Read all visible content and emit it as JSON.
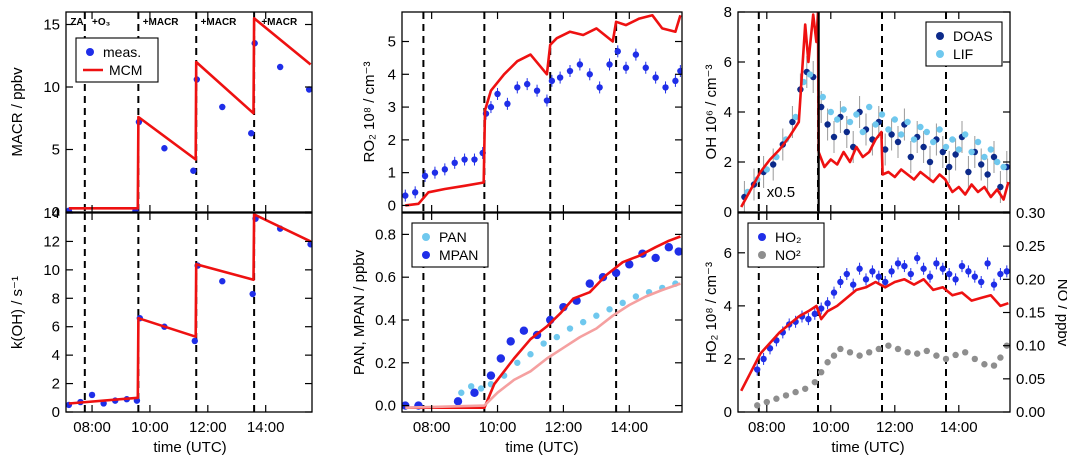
{
  "colors": {
    "meas": "#1f2ee8",
    "model": "#ee1111",
    "model_light": "#f5a0a0",
    "light_blue": "#6fc8ee",
    "dark_blue": "#0c2a8a",
    "gray": "#8e8e8e"
  },
  "x_axis": {
    "ticks": [
      8,
      10,
      12,
      14
    ],
    "tick_labels": [
      "08:00",
      "10:00",
      "12:00",
      "14:00"
    ],
    "label": "time (UTC)",
    "range": [
      7.1,
      15.6
    ],
    "events": [
      7.75,
      9.6,
      11.6,
      13.6
    ]
  },
  "chart_data": [
    {
      "id": "macr",
      "type": "scatter",
      "ylabel": "MACR  / ppbv",
      "ylim": [
        0,
        16
      ],
      "yticks": [
        0,
        5,
        10,
        15
      ],
      "legend": [
        "meas.",
        "MCM"
      ],
      "legend_position": "top-left",
      "annotations": [
        "ZA",
        "+O₃",
        "+MACR",
        "+MACR",
        "+MACR"
      ],
      "series": [
        {
          "name": "meas.",
          "style": "dots",
          "color": "meas",
          "x": [
            7.2,
            9.5,
            9.62,
            10.5,
            11.5,
            11.62,
            12.5,
            13.5,
            13.62,
            14.5,
            15.5
          ],
          "y": [
            0.1,
            0.1,
            7.2,
            5.1,
            3.3,
            10.6,
            8.4,
            6.3,
            13.5,
            11.6,
            9.8
          ]
        },
        {
          "name": "MCM",
          "style": "line",
          "color": "model",
          "x": [
            7.2,
            9.58,
            9.6,
            11.58,
            11.6,
            13.58,
            13.6,
            15.55
          ],
          "y": [
            0.3,
            0.3,
            7.6,
            4.2,
            12.0,
            7.9,
            15.5,
            11.8
          ]
        }
      ]
    },
    {
      "id": "koh",
      "type": "scatter",
      "ylabel": "k(OH)  / s⁻¹",
      "ylim": [
        0,
        14
      ],
      "yticks": [
        0,
        2,
        4,
        6,
        8,
        10,
        12,
        14
      ],
      "series": [
        {
          "name": "",
          "style": "dots",
          "color": "meas",
          "x": [
            7.2,
            7.6,
            8.0,
            8.4,
            8.8,
            9.2,
            9.55,
            9.65,
            10.5,
            11.55,
            11.65,
            12.5,
            13.55,
            13.65,
            14.5,
            15.55
          ],
          "y": [
            0.5,
            0.7,
            1.2,
            0.6,
            0.8,
            0.9,
            0.8,
            6.6,
            6.0,
            5.0,
            10.3,
            9.2,
            8.3,
            13.6,
            12.9,
            11.8
          ]
        },
        {
          "name": "",
          "style": "line",
          "color": "model",
          "x": [
            7.2,
            9.58,
            9.6,
            11.58,
            11.6,
            13.58,
            13.6,
            15.55
          ],
          "y": [
            0.6,
            1.0,
            6.6,
            5.3,
            10.4,
            9.3,
            13.9,
            12.0
          ]
        }
      ]
    },
    {
      "id": "ro2",
      "type": "scatter",
      "ylabel": "RO₂  10⁸ / cm⁻³",
      "ylim": [
        -0.2,
        5.9
      ],
      "yticks": [
        0,
        1,
        2,
        3,
        4,
        5
      ],
      "series": [
        {
          "name": "",
          "style": "dots_err",
          "color": "meas",
          "x": [
            7.2,
            7.5,
            7.8,
            8.1,
            8.4,
            8.7,
            9.0,
            9.3,
            9.55,
            9.65,
            9.8,
            10.0,
            10.3,
            10.6,
            10.9,
            11.2,
            11.5,
            11.65,
            11.9,
            12.2,
            12.5,
            12.8,
            13.1,
            13.4,
            13.65,
            13.9,
            14.2,
            14.5,
            14.8,
            15.1,
            15.4,
            15.55
          ],
          "y": [
            0.3,
            0.4,
            0.9,
            1.0,
            1.1,
            1.3,
            1.4,
            1.4,
            1.6,
            2.8,
            3.0,
            3.4,
            3.1,
            3.6,
            3.7,
            3.5,
            3.2,
            3.8,
            3.9,
            4.1,
            4.3,
            4.0,
            3.6,
            4.3,
            4.7,
            4.2,
            4.6,
            4.2,
            3.9,
            3.6,
            3.8,
            4.1
          ]
        },
        {
          "name": "",
          "style": "line",
          "color": "model",
          "x": [
            7.2,
            7.6,
            7.9,
            8.4,
            9.0,
            9.58,
            9.62,
            9.8,
            10.2,
            10.6,
            11.0,
            11.5,
            11.6,
            11.8,
            12.2,
            12.6,
            13.0,
            13.5,
            13.6,
            13.9,
            14.3,
            14.7,
            15.0,
            15.4,
            15.55
          ],
          "y": [
            0.0,
            0.05,
            0.4,
            0.5,
            0.6,
            0.7,
            2.9,
            3.5,
            4.0,
            4.4,
            4.6,
            4.0,
            4.9,
            5.1,
            5.3,
            5.2,
            5.4,
            5.0,
            5.6,
            5.5,
            5.7,
            5.8,
            5.4,
            5.3,
            5.8
          ]
        }
      ]
    },
    {
      "id": "pan",
      "type": "scatter",
      "ylabel": "PAN, MPAN  / ppbv",
      "ylim": [
        -0.03,
        0.9
      ],
      "yticks": [
        0.0,
        0.2,
        0.4,
        0.6,
        0.8
      ],
      "tick_decimals": 1,
      "legend": [
        "PAN",
        "MPAN"
      ],
      "legend_position": "top-left",
      "series": [
        {
          "name": "PAN",
          "style": "dots",
          "color": "light_blue",
          "x": [
            7.2,
            8.9,
            9.2,
            9.5,
            9.8,
            10.2,
            10.6,
            11.0,
            11.4,
            11.8,
            12.2,
            12.6,
            13.0,
            13.4,
            13.8,
            14.2,
            14.6,
            15.0,
            15.4
          ],
          "y": [
            0.0,
            0.06,
            0.09,
            0.08,
            0.1,
            0.14,
            0.2,
            0.24,
            0.29,
            0.32,
            0.36,
            0.39,
            0.42,
            0.45,
            0.48,
            0.51,
            0.53,
            0.55,
            0.57
          ]
        },
        {
          "name": "MPAN",
          "style": "dots_big",
          "color": "meas",
          "x": [
            7.2,
            7.6,
            8.8,
            9.3,
            9.8,
            10.1,
            10.4,
            10.8,
            11.2,
            11.6,
            12.0,
            12.4,
            12.8,
            13.2,
            13.6,
            14.0,
            14.4,
            14.8,
            15.2,
            15.5
          ],
          "y": [
            0.0,
            0.0,
            0.02,
            0.06,
            0.14,
            0.22,
            0.3,
            0.35,
            0.33,
            0.4,
            0.46,
            0.49,
            0.57,
            0.6,
            0.62,
            0.66,
            0.71,
            0.69,
            0.74,
            0.72
          ]
        },
        {
          "name": "",
          "style": "line",
          "color": "model",
          "x": [
            7.2,
            9.6,
            9.9,
            10.5,
            11.0,
            11.5,
            11.9,
            12.3,
            12.8,
            13.3,
            13.8,
            14.3,
            14.8,
            15.2,
            15.55
          ],
          "y": [
            -0.01,
            -0.01,
            0.1,
            0.22,
            0.31,
            0.37,
            0.43,
            0.5,
            0.53,
            0.61,
            0.67,
            0.7,
            0.74,
            0.77,
            0.79
          ]
        },
        {
          "name": "",
          "style": "line",
          "color": "model_light",
          "x": [
            7.2,
            9.6,
            10.0,
            10.5,
            11.0,
            11.5,
            12.0,
            12.5,
            13.0,
            13.5,
            14.0,
            14.5,
            15.0,
            15.55
          ],
          "y": [
            -0.01,
            0.0,
            0.06,
            0.12,
            0.16,
            0.22,
            0.27,
            0.32,
            0.36,
            0.42,
            0.47,
            0.51,
            0.54,
            0.57
          ]
        }
      ]
    },
    {
      "id": "oh",
      "type": "scatter",
      "ylabel": "OH  10⁶ / cm⁻³",
      "ylim": [
        0,
        8
      ],
      "yticks": [
        0,
        2,
        4,
        6,
        8
      ],
      "legend": [
        "DOAS",
        "LIF"
      ],
      "legend_position": "top-right",
      "annotations": [
        "x0.5"
      ],
      "series": [
        {
          "name": "DOAS",
          "style": "dots_err_gray",
          "color": "dark_blue",
          "x": [
            7.3,
            7.6,
            7.9,
            8.2,
            8.5,
            8.8,
            9.05,
            9.25,
            9.45,
            9.7,
            9.9,
            10.1,
            10.3,
            10.5,
            10.7,
            10.9,
            11.1,
            11.3,
            11.5,
            11.7,
            11.9,
            12.1,
            12.3,
            12.5,
            12.7,
            12.9,
            13.1,
            13.3,
            13.5,
            13.7,
            13.9,
            14.1,
            14.3,
            14.5,
            14.7,
            14.9,
            15.1,
            15.3,
            15.5
          ],
          "y": [
            0.6,
            1.1,
            1.6,
            1.9,
            2.7,
            3.6,
            4.9,
            5.6,
            5.4,
            4.2,
            3.5,
            3.0,
            3.8,
            3.2,
            2.6,
            4.0,
            3.3,
            2.9,
            3.6,
            2.5,
            3.1,
            2.8,
            3.5,
            2.2,
            3.0,
            2.6,
            2.0,
            2.9,
            2.4,
            1.8,
            2.3,
            3.0,
            1.6,
            2.4,
            1.9,
            1.5,
            2.2,
            1.0,
            1.8
          ]
        },
        {
          "name": "LIF",
          "style": "dots",
          "color": "light_blue",
          "x": [
            7.4,
            7.7,
            8.0,
            8.3,
            8.6,
            8.9,
            9.15,
            9.35,
            9.75,
            10.0,
            10.2,
            10.4,
            10.6,
            10.8,
            11.0,
            11.2,
            11.4,
            11.6,
            11.8,
            12.0,
            12.2,
            12.4,
            12.6,
            12.8,
            13.0,
            13.2,
            13.4,
            13.6,
            13.8,
            14.0,
            14.2,
            14.4,
            14.6,
            14.8,
            15.0,
            15.2,
            15.4
          ],
          "y": [
            0.8,
            1.3,
            1.7,
            2.2,
            2.9,
            3.8,
            5.2,
            5.5,
            4.6,
            4.0,
            3.7,
            4.1,
            3.6,
            3.9,
            3.2,
            4.2,
            3.5,
            3.9,
            3.3,
            3.7,
            3.1,
            3.6,
            2.9,
            3.4,
            3.2,
            2.8,
            3.3,
            2.6,
            2.9,
            2.5,
            3.1,
            2.4,
            2.8,
            2.2,
            2.5,
            2.0,
            1.8
          ]
        },
        {
          "name": "",
          "style": "line",
          "color": "model",
          "x": [
            7.2,
            7.5,
            7.8,
            8.1,
            8.4,
            8.7,
            9.0,
            9.2,
            9.3,
            9.45,
            9.55,
            9.6,
            9.62,
            9.8,
            10.0,
            10.2,
            10.4,
            10.6,
            10.8,
            11.0,
            11.2,
            11.4,
            11.58,
            11.62,
            11.8,
            12.0,
            12.2,
            12.4,
            12.6,
            12.8,
            13.0,
            13.2,
            13.4,
            13.58,
            13.62,
            13.8,
            14.0,
            14.2,
            14.4,
            14.6,
            14.8,
            15.0,
            15.2,
            15.4,
            15.55
          ],
          "y": [
            0.2,
            0.9,
            1.6,
            2.1,
            2.5,
            3.0,
            3.6,
            7.5,
            6.0,
            7.9,
            6.8,
            8.0,
            2.4,
            1.8,
            2.1,
            1.9,
            2.4,
            2.0,
            2.6,
            2.2,
            2.4,
            2.9,
            3.2,
            1.5,
            1.6,
            1.4,
            1.7,
            1.5,
            1.3,
            1.6,
            1.4,
            1.2,
            1.5,
            1.3,
            1.2,
            0.8,
            1.0,
            0.7,
            1.1,
            0.8,
            1.0,
            0.6,
            0.9,
            0.5,
            1.2
          ]
        }
      ]
    },
    {
      "id": "ho2",
      "type": "scatter",
      "ylabel": "HO₂  10⁸ / cm⁻³",
      "ylim": [
        0,
        7.5
      ],
      "yticks": [
        0,
        2,
        4,
        6
      ],
      "y2label": "NO  / ppbv",
      "y2lim": [
        0,
        0.3
      ],
      "y2ticks": [
        0.0,
        0.05,
        0.1,
        0.15,
        0.2,
        0.25,
        0.3
      ],
      "legend": [
        "HO₂",
        "NO²"
      ],
      "legend_position": "top-left",
      "series": [
        {
          "name": "HO₂",
          "style": "dots_err",
          "color": "meas",
          "x": [
            7.7,
            7.9,
            8.1,
            8.3,
            8.5,
            8.7,
            8.9,
            9.1,
            9.3,
            9.5,
            9.7,
            9.9,
            10.1,
            10.3,
            10.5,
            10.7,
            10.9,
            11.1,
            11.3,
            11.5,
            11.7,
            11.9,
            12.1,
            12.3,
            12.5,
            12.7,
            12.9,
            13.1,
            13.3,
            13.5,
            13.7,
            13.9,
            14.1,
            14.3,
            14.5,
            14.7,
            14.9,
            15.1,
            15.3,
            15.5
          ],
          "y": [
            1.6,
            2.0,
            2.4,
            2.7,
            3.0,
            3.3,
            3.4,
            3.6,
            3.5,
            3.7,
            3.9,
            4.1,
            4.5,
            4.9,
            5.2,
            4.8,
            5.4,
            5.0,
            5.3,
            5.1,
            4.9,
            5.3,
            5.6,
            5.5,
            5.2,
            5.8,
            5.4,
            5.1,
            5.6,
            5.4,
            5.2,
            5.0,
            5.5,
            5.3,
            5.1,
            4.9,
            5.6,
            4.8,
            5.2,
            5.3
          ]
        },
        {
          "name": "NO²",
          "style": "dots_axis2",
          "color": "gray",
          "x": [
            7.7,
            8.0,
            8.3,
            8.6,
            8.9,
            9.2,
            9.5,
            9.7,
            9.9,
            10.1,
            10.3,
            10.6,
            10.9,
            11.2,
            11.5,
            11.8,
            12.1,
            12.4,
            12.7,
            13.0,
            13.3,
            13.6,
            13.9,
            14.2,
            14.5,
            14.8,
            15.1,
            15.3,
            15.5
          ],
          "y": [
            0.01,
            0.015,
            0.02,
            0.025,
            0.03,
            0.035,
            0.045,
            0.06,
            0.075,
            0.085,
            0.095,
            0.09,
            0.085,
            0.09,
            0.095,
            0.1,
            0.095,
            0.09,
            0.088,
            0.092,
            0.085,
            0.08,
            0.086,
            0.09,
            0.08,
            0.072,
            0.07,
            0.082,
            0.1
          ]
        },
        {
          "name": "",
          "style": "line",
          "color": "model",
          "x": [
            7.2,
            7.5,
            7.8,
            8.1,
            8.4,
            8.7,
            9.0,
            9.3,
            9.55,
            9.7,
            9.9,
            10.2,
            10.5,
            10.8,
            11.1,
            11.4,
            11.7,
            12.0,
            12.3,
            12.6,
            12.9,
            13.2,
            13.5,
            13.8,
            14.1,
            14.4,
            14.7,
            15.0,
            15.3,
            15.55
          ],
          "y": [
            0.8,
            1.5,
            2.2,
            2.6,
            3.0,
            3.3,
            3.6,
            3.8,
            4.0,
            3.5,
            3.8,
            4.0,
            4.3,
            4.6,
            4.7,
            4.9,
            4.7,
            4.9,
            5.0,
            4.8,
            5.0,
            4.6,
            4.7,
            4.4,
            4.5,
            4.2,
            4.3,
            4.4,
            4.0,
            4.1
          ]
        }
      ]
    }
  ]
}
